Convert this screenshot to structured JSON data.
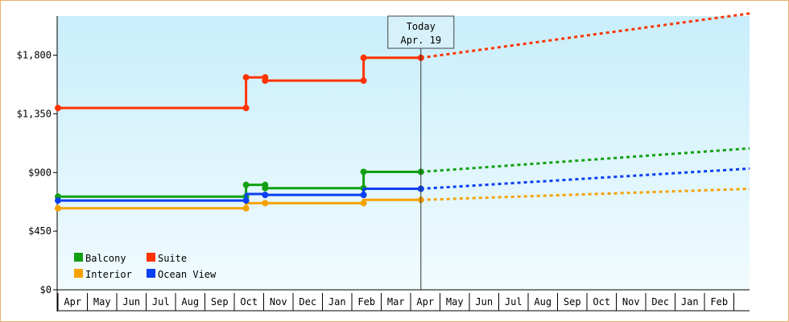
{
  "chart_data": {
    "type": "line",
    "y_ticks": [
      "$0",
      "$450",
      "$900",
      "$1,350",
      "$1,800"
    ],
    "y_tick_values": [
      0,
      450,
      900,
      1350,
      1800
    ],
    "ylim": [
      0,
      2100
    ],
    "months": [
      "Apr",
      "May",
      "Jun",
      "Jul",
      "Aug",
      "Sep",
      "Oct",
      "Nov",
      "Dec",
      "Jan",
      "Feb",
      "Mar",
      "Apr",
      "May",
      "Jun",
      "Jul",
      "Aug",
      "Sep",
      "Oct",
      "Nov",
      "Dec",
      "Jan",
      "Feb"
    ],
    "today": {
      "line1": "Today",
      "line2": "Apr. 19",
      "x": 12.35
    },
    "x_max": 23.8,
    "legend_position": "bottom-left",
    "grid": false,
    "series": [
      {
        "name": "Balcony",
        "color": "#11a011",
        "points": [
          [
            0,
            715
          ],
          [
            6.4,
            715
          ],
          [
            6.4,
            805
          ],
          [
            7.05,
            805
          ],
          [
            7.05,
            780
          ],
          [
            10.4,
            780
          ],
          [
            10.4,
            905
          ],
          [
            12.35,
            905
          ]
        ],
        "markers": [
          [
            0,
            715
          ],
          [
            6.4,
            715
          ],
          [
            6.4,
            805
          ],
          [
            7.05,
            805
          ],
          [
            7.05,
            780
          ],
          [
            10.4,
            780
          ],
          [
            10.4,
            905
          ],
          [
            12.35,
            905
          ]
        ],
        "forecast_end": 1085
      },
      {
        "name": "Suite",
        "color": "#ff3300",
        "points": [
          [
            0,
            1395
          ],
          [
            6.4,
            1395
          ],
          [
            6.4,
            1630
          ],
          [
            7.05,
            1630
          ],
          [
            7.05,
            1605
          ],
          [
            10.4,
            1605
          ],
          [
            10.4,
            1780
          ],
          [
            12.35,
            1780
          ]
        ],
        "markers": [
          [
            0,
            1395
          ],
          [
            6.4,
            1395
          ],
          [
            6.4,
            1630
          ],
          [
            7.05,
            1630
          ],
          [
            7.05,
            1605
          ],
          [
            10.4,
            1605
          ],
          [
            10.4,
            1780
          ],
          [
            12.35,
            1780
          ]
        ],
        "forecast_end": 2120
      },
      {
        "name": "Interior",
        "color": "#f5a200",
        "points": [
          [
            0,
            625
          ],
          [
            6.4,
            625
          ],
          [
            6.4,
            665
          ],
          [
            7.05,
            665
          ],
          [
            10.4,
            665
          ],
          [
            10.4,
            690
          ],
          [
            12.35,
            690
          ]
        ],
        "markers": [
          [
            0,
            625
          ],
          [
            6.4,
            625
          ],
          [
            7.05,
            665
          ],
          [
            10.4,
            665
          ],
          [
            12.35,
            690
          ]
        ],
        "forecast_end": 775
      },
      {
        "name": "Ocean View",
        "color": "#0b3ff2",
        "points": [
          [
            0,
            685
          ],
          [
            6.4,
            685
          ],
          [
            6.4,
            735
          ],
          [
            7.05,
            735
          ],
          [
            7.05,
            728
          ],
          [
            10.4,
            728
          ],
          [
            10.4,
            775
          ],
          [
            12.35,
            775
          ]
        ],
        "markers": [
          [
            0,
            685
          ],
          [
            6.4,
            685
          ],
          [
            7.05,
            728
          ],
          [
            10.4,
            728
          ],
          [
            12.35,
            775
          ]
        ],
        "forecast_end": 930
      }
    ]
  }
}
